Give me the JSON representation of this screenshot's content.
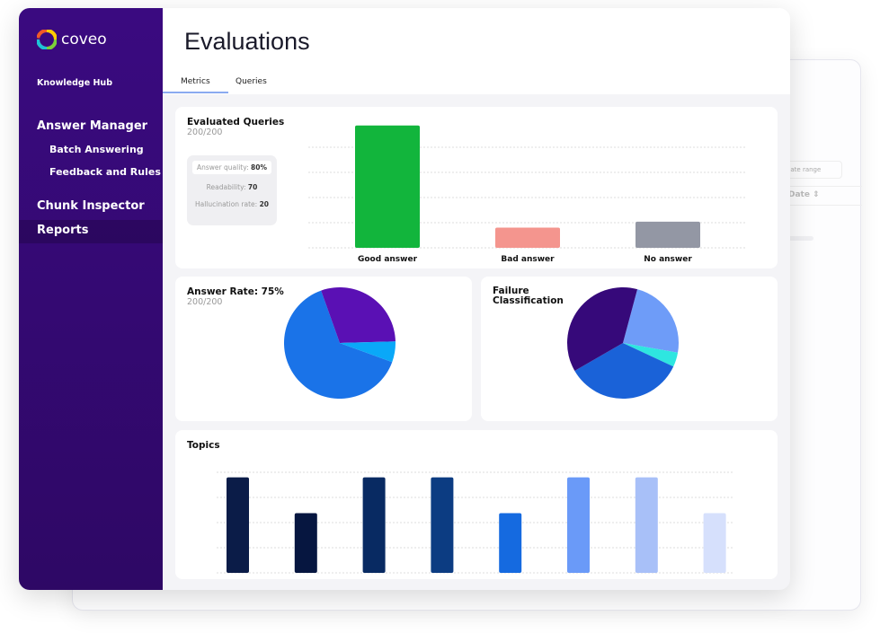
{
  "background_window": {
    "date_range_placeholder": "Date range",
    "column_header": "Date"
  },
  "sidebar": {
    "brand": "coveo",
    "section": "Knowledge Hub",
    "items": [
      {
        "label": "Answer Manager"
      },
      {
        "label": "Batch Answering"
      },
      {
        "label": "Feedback and Rules"
      },
      {
        "label": "Chunk Inspector"
      },
      {
        "label": "Reports"
      }
    ]
  },
  "header": {
    "title": "Evaluations",
    "tabs": [
      {
        "label": "Metrics"
      },
      {
        "label": "Queries"
      }
    ]
  },
  "evaluated": {
    "title": "Evaluated Queries",
    "count": "200/200",
    "answer_quality_label": "Answer quality:",
    "answer_quality": "80%",
    "readability_label": "Readability:",
    "readability": "70",
    "hallucination_label": "Hallucination rate:",
    "hallucination": "20"
  },
  "answer_rate": {
    "title": "Answer Rate: 75%",
    "count": "200/200"
  },
  "failure": {
    "title": "Failure Classification"
  },
  "topics": {
    "title": "Topics"
  },
  "chart_data": [
    {
      "type": "bar",
      "title": "Evaluated Queries",
      "categories": [
        "Good answer",
        "Bad answer",
        "No answer"
      ],
      "values": [
        145,
        24,
        31
      ],
      "colors": [
        "#12b53c",
        "#f4958e",
        "#9397a4"
      ],
      "ylim": [
        0,
        150
      ]
    },
    {
      "type": "pie",
      "title": "Answer Rate: 75%",
      "values": [
        64,
        30,
        6
      ],
      "colors": [
        "#1a73e8",
        "#5a10b4",
        "#0aa8f8"
      ]
    },
    {
      "type": "pie",
      "title": "Failure Classification",
      "values": [
        23.6,
        4.2,
        34.7,
        37.5
      ],
      "colors": [
        "#6e9cf8",
        "#2ee6e0",
        "#1a62d8",
        "#36097a"
      ]
    },
    {
      "type": "bar",
      "title": "Topics",
      "values": [
        4,
        2.5,
        4,
        4,
        2.5,
        4,
        4,
        2.5
      ],
      "colors": [
        "#0b1c48",
        "#061640",
        "#082a62",
        "#0c3c82",
        "#156ae0",
        "#6a9af8",
        "#a8c0f8",
        "#d6e0fc"
      ],
      "ylim": [
        0,
        4.25
      ]
    }
  ]
}
